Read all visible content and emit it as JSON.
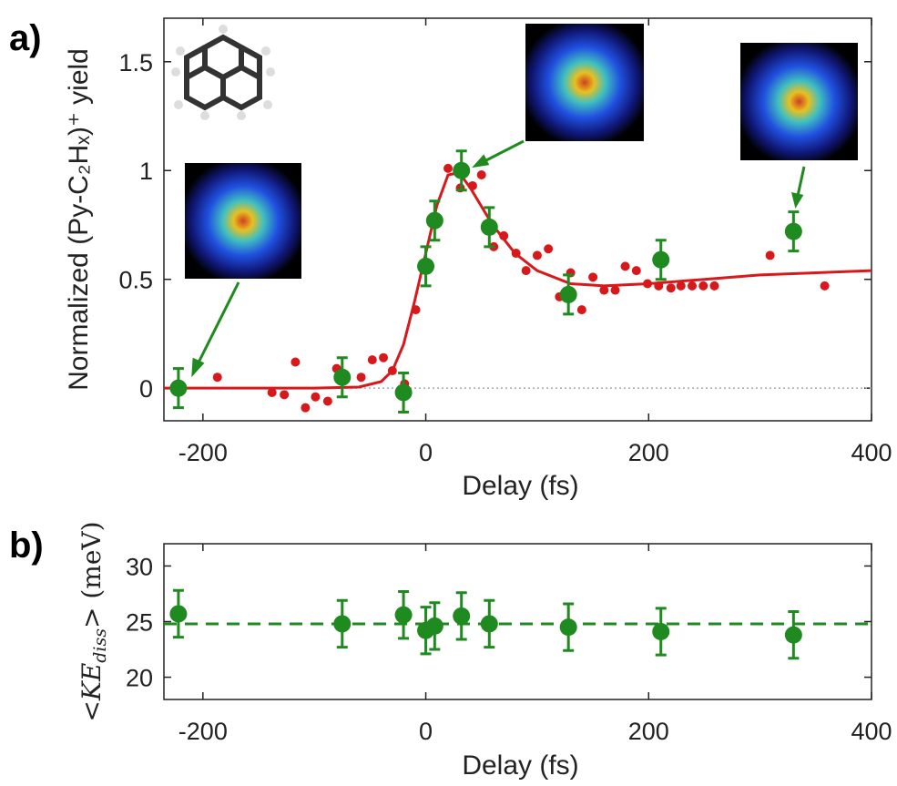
{
  "chart_data": [
    {
      "type": "scatter",
      "label": "a)",
      "xlabel": "Delay (fs)",
      "ylabel": "Normalized (Py-C₂Hₓ)⁺ yield",
      "xlim": [
        -235,
        400
      ],
      "ylim": [
        -0.15,
        1.7
      ],
      "xticks": [
        -200,
        0,
        200,
        400
      ],
      "yticks": [
        0,
        0.5,
        1,
        1.5
      ],
      "reference_line": 0,
      "series": [
        {
          "style": "dots",
          "color": "#d7191c",
          "x": [
            -187,
            -138,
            -127,
            -117,
            -108,
            -99,
            -88,
            -80,
            -58,
            -48,
            -38,
            -30,
            -19,
            -9,
            -1,
            8,
            20,
            31,
            42,
            50,
            61,
            70,
            81,
            90,
            100,
            110,
            120,
            130,
            140,
            150,
            160,
            170,
            179,
            189,
            199,
            209,
            220,
            229,
            239,
            249,
            259,
            309,
            358
          ],
          "values": [
            0.05,
            -0.02,
            -0.03,
            0.12,
            -0.09,
            -0.04,
            -0.06,
            0.09,
            0.05,
            0.13,
            0.14,
            0.08,
            0.02,
            0.36,
            0.57,
            0.76,
            1.01,
            0.92,
            0.93,
            0.98,
            0.65,
            0.7,
            0.62,
            0.54,
            0.61,
            0.64,
            0.42,
            0.53,
            0.36,
            0.51,
            0.45,
            0.45,
            0.56,
            0.54,
            0.48,
            0.47,
            0.46,
            0.47,
            0.47,
            0.47,
            0.47,
            0.61,
            0.47
          ]
        },
        {
          "style": "line",
          "color": "#d7191c",
          "x": [
            -235,
            -100,
            -60,
            -40,
            -30,
            -20,
            -10,
            0,
            10,
            20,
            30,
            40,
            60,
            80,
            100,
            130,
            160,
            200,
            250,
            300,
            350,
            400
          ],
          "values": [
            0,
            0,
            0.005,
            0.03,
            0.08,
            0.2,
            0.4,
            0.62,
            0.84,
            0.98,
            0.99,
            0.92,
            0.75,
            0.62,
            0.54,
            0.48,
            0.47,
            0.48,
            0.5,
            0.52,
            0.53,
            0.54
          ]
        },
        {
          "style": "errorbar",
          "color": "#1f8a1f",
          "x": [
            -222,
            -75,
            -20,
            0,
            8,
            32,
            57,
            128,
            211,
            330
          ],
          "values": [
            0.0,
            0.05,
            -0.02,
            0.56,
            0.77,
            1.0,
            0.74,
            0.43,
            0.59,
            0.72
          ],
          "errors": [
            0.09,
            0.09,
            0.09,
            0.09,
            0.09,
            0.09,
            0.09,
            0.09,
            0.09,
            0.09
          ]
        }
      ]
    },
    {
      "type": "scatter",
      "label": "b)",
      "xlabel": "Delay (fs)",
      "ylabel": [
        "<KE",
        "diss",
        "> (meV)"
      ],
      "xlim": [
        -235,
        400
      ],
      "ylim": [
        18,
        32
      ],
      "xticks": [
        -200,
        0,
        200,
        400
      ],
      "yticks": [
        20,
        25,
        30
      ],
      "mean_line": 24.8,
      "series": [
        {
          "style": "errorbar",
          "color": "#1f8a1f",
          "x": [
            -222,
            -75,
            -20,
            0,
            8,
            32,
            57,
            128,
            211,
            330
          ],
          "values": [
            25.7,
            24.8,
            25.6,
            24.2,
            24.6,
            25.5,
            24.8,
            24.5,
            24.1,
            23.8
          ],
          "errors": [
            2.1,
            2.1,
            2.1,
            2.1,
            2.1,
            2.1,
            2.1,
            2.1,
            2.1,
            2.1
          ]
        }
      ]
    }
  ]
}
